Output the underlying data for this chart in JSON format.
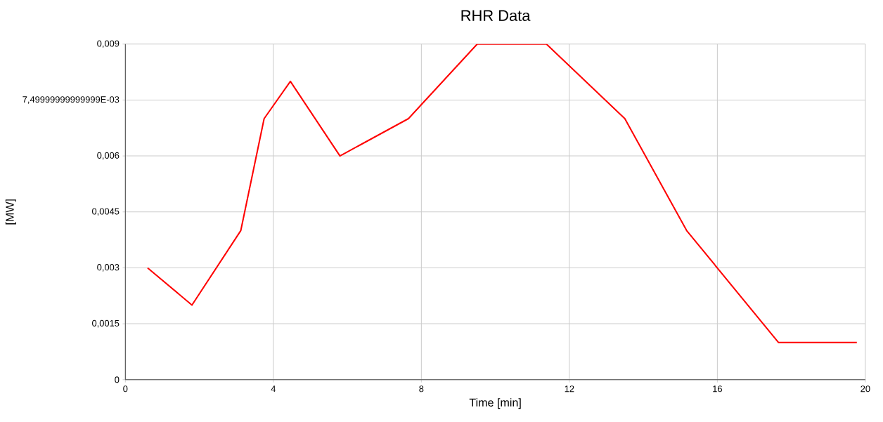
{
  "chart_data": {
    "type": "line",
    "title": "RHR Data",
    "xlabel": "Time [min]",
    "ylabel": "[MW]",
    "x": [
      0.6,
      1.8,
      3.12,
      3.75,
      4.46,
      5.8,
      7.65,
      9.51,
      11.38,
      13.5,
      15.17,
      17.65,
      19.77
    ],
    "series": [
      {
        "color": "#ff0000",
        "values": [
          0.003,
          0.002,
          0.004,
          0.007,
          0.008,
          0.006,
          0.007,
          0.009,
          0.009,
          0.007,
          0.004,
          0.001,
          0.001
        ]
      }
    ],
    "xlim": [
      0,
      20
    ],
    "ylim": [
      0,
      0.009
    ],
    "xticks": [
      0,
      4,
      8,
      12,
      16,
      20
    ],
    "yticks": [
      0,
      {
        "value": 0.0015,
        "label": "0,0015"
      },
      {
        "value": 0.003,
        "label": "0,003"
      },
      {
        "value": 0.0045,
        "label": "0,0045"
      },
      {
        "value": 0.006,
        "label": "0,006"
      },
      {
        "value": 0.0075,
        "label": "7,49999999999999E-03"
      },
      {
        "value": 0.009,
        "label": "0,009"
      }
    ],
    "grid": true,
    "marker": "none",
    "line_style": "solid"
  }
}
